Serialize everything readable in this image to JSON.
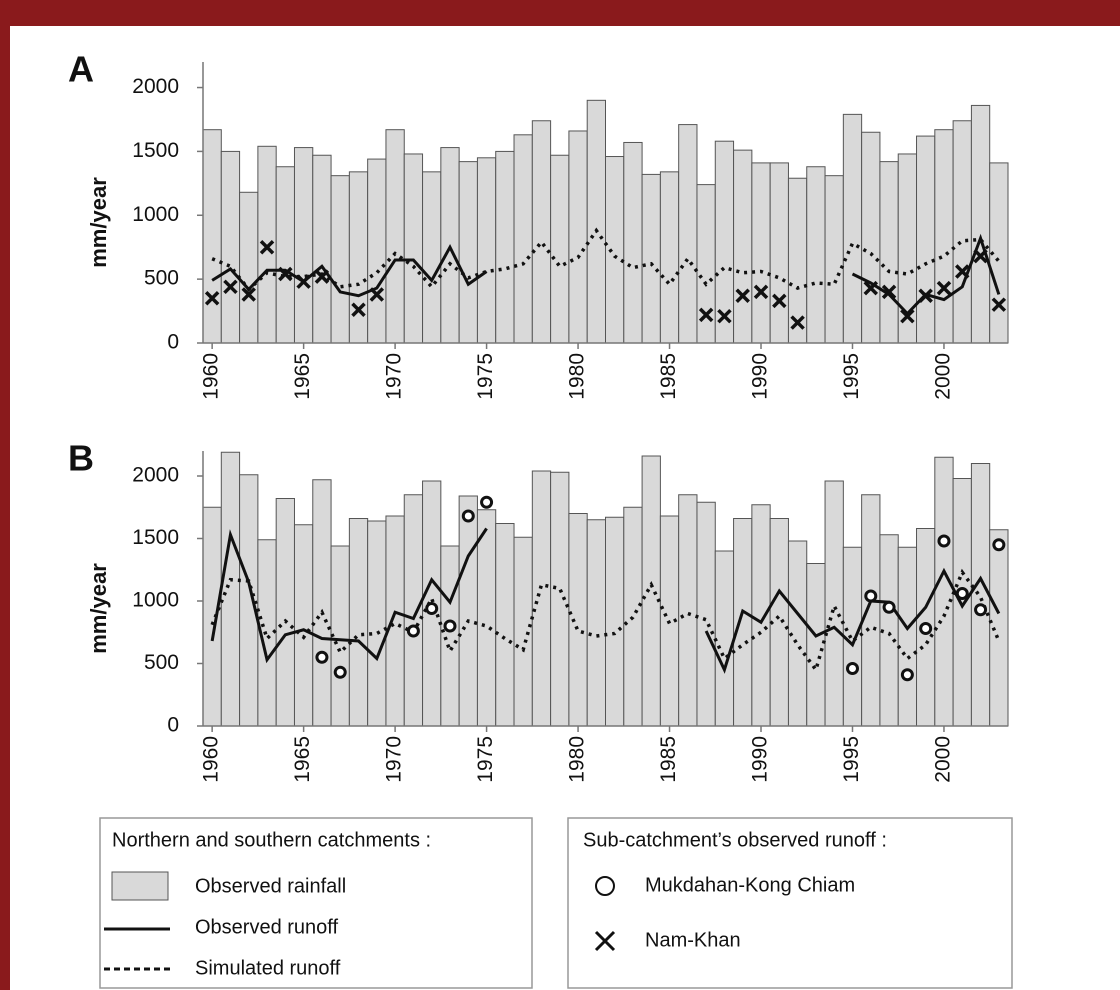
{
  "chart_data": [
    {
      "type": "combo",
      "title": "A",
      "y_label": "mm/year",
      "x": [
        1960,
        1961,
        1962,
        1963,
        1964,
        1965,
        1966,
        1967,
        1968,
        1969,
        1970,
        1971,
        1972,
        1973,
        1974,
        1975,
        1976,
        1977,
        1978,
        1979,
        1980,
        1981,
        1982,
        1983,
        1984,
        1985,
        1986,
        1987,
        1988,
        1989,
        1990,
        1991,
        1992,
        1993,
        1994,
        1995,
        1996,
        1997,
        1998,
        1999,
        2000,
        2001,
        2002,
        2003
      ],
      "xlim": [
        1959.5,
        2003.5
      ],
      "xticks": [
        1960,
        1965,
        1970,
        1975,
        1980,
        1985,
        1990,
        1995,
        2000
      ],
      "ylim": [
        0,
        2200
      ],
      "yticks": [
        0,
        500,
        1000,
        1500,
        2000
      ],
      "series": [
        {
          "name": "Observed rainfall",
          "type": "bar",
          "color": "#d9d9d9",
          "values": [
            1670,
            1500,
            1180,
            1540,
            1380,
            1530,
            1470,
            1310,
            1340,
            1440,
            1670,
            1480,
            1340,
            1530,
            1420,
            1450,
            1500,
            1630,
            1740,
            1470,
            1660,
            1900,
            1460,
            1570,
            1320,
            1340,
            1710,
            1240,
            1580,
            1510,
            1410,
            1410,
            1290,
            1380,
            1310,
            1790,
            1650,
            1420,
            1480,
            1620,
            1670,
            1740,
            1860,
            1410
          ]
        },
        {
          "name": "Observed runoff",
          "type": "line",
          "style": "solid",
          "color": "#111111",
          "values": [
            490,
            580,
            420,
            570,
            570,
            480,
            600,
            400,
            370,
            430,
            650,
            650,
            490,
            750,
            460,
            560,
            null,
            null,
            null,
            null,
            null,
            null,
            null,
            null,
            null,
            null,
            null,
            null,
            null,
            null,
            null,
            null,
            null,
            null,
            null,
            540,
            470,
            380,
            230,
            380,
            340,
            440,
            820,
            380
          ]
        },
        {
          "name": "Simulated runoff",
          "type": "line",
          "style": "dotted",
          "color": "#111111",
          "values": [
            660,
            600,
            420,
            550,
            520,
            520,
            540,
            440,
            460,
            550,
            700,
            600,
            440,
            620,
            510,
            560,
            580,
            620,
            790,
            600,
            670,
            880,
            680,
            590,
            620,
            460,
            660,
            460,
            590,
            550,
            560,
            510,
            430,
            470,
            460,
            780,
            700,
            560,
            540,
            620,
            680,
            800,
            810,
            640
          ]
        },
        {
          "name": "Nam-Khan",
          "type": "scatter",
          "marker": "x",
          "color": "#111111",
          "values": [
            350,
            440,
            380,
            750,
            540,
            480,
            520,
            null,
            260,
            380,
            null,
            null,
            null,
            null,
            null,
            null,
            null,
            null,
            null,
            null,
            null,
            null,
            null,
            null,
            null,
            null,
            null,
            220,
            210,
            370,
            400,
            330,
            160,
            null,
            null,
            null,
            430,
            400,
            210,
            370,
            430,
            560,
            680,
            300
          ]
        }
      ]
    },
    {
      "type": "combo",
      "title": "B",
      "y_label": "mm/year",
      "x": [
        1960,
        1961,
        1962,
        1963,
        1964,
        1965,
        1966,
        1967,
        1968,
        1969,
        1970,
        1971,
        1972,
        1973,
        1974,
        1975,
        1976,
        1977,
        1978,
        1979,
        1980,
        1981,
        1982,
        1983,
        1984,
        1985,
        1986,
        1987,
        1988,
        1989,
        1990,
        1991,
        1992,
        1993,
        1994,
        1995,
        1996,
        1997,
        1998,
        1999,
        2000,
        2001,
        2002,
        2003
      ],
      "xlim": [
        1959.5,
        2003.5
      ],
      "xticks": [
        1960,
        1965,
        1970,
        1975,
        1980,
        1985,
        1990,
        1995,
        2000
      ],
      "ylim": [
        0,
        2200
      ],
      "yticks": [
        0,
        500,
        1000,
        1500,
        2000
      ],
      "series": [
        {
          "name": "Observed rainfall",
          "type": "bar",
          "color": "#d9d9d9",
          "values": [
            1750,
            2190,
            2010,
            1490,
            1820,
            1610,
            1970,
            1440,
            1660,
            1640,
            1680,
            1850,
            1960,
            1440,
            1840,
            1730,
            1620,
            1510,
            2040,
            2030,
            1700,
            1650,
            1670,
            1750,
            2160,
            1680,
            1850,
            1790,
            1400,
            1660,
            1770,
            1660,
            1480,
            1300,
            1960,
            1430,
            1850,
            1530,
            1430,
            1580,
            2150,
            1980,
            2100,
            1570
          ]
        },
        {
          "name": "Observed runoff",
          "type": "line",
          "style": "solid",
          "color": "#111111",
          "values": [
            680,
            1530,
            1150,
            530,
            730,
            770,
            700,
            690,
            680,
            540,
            910,
            860,
            1170,
            990,
            1360,
            1580,
            null,
            null,
            null,
            null,
            null,
            null,
            null,
            null,
            null,
            null,
            null,
            760,
            450,
            920,
            830,
            1080,
            900,
            720,
            790,
            650,
            1000,
            990,
            780,
            950,
            1240,
            960,
            1180,
            900
          ]
        },
        {
          "name": "Simulated runoff",
          "type": "line",
          "style": "dotted",
          "color": "#111111",
          "values": [
            810,
            1170,
            1160,
            700,
            840,
            710,
            910,
            590,
            730,
            740,
            820,
            750,
            1020,
            600,
            840,
            800,
            700,
            610,
            1130,
            1100,
            760,
            720,
            740,
            870,
            1130,
            820,
            900,
            850,
            540,
            650,
            750,
            880,
            650,
            450,
            960,
            680,
            790,
            740,
            540,
            650,
            880,
            1230,
            1030,
            680
          ]
        },
        {
          "name": "Mukdahan-Kong Chiam",
          "type": "scatter",
          "marker": "circle",
          "color": "#111111",
          "values": [
            null,
            null,
            null,
            null,
            null,
            null,
            550,
            430,
            null,
            null,
            null,
            760,
            940,
            800,
            1680,
            1790,
            null,
            null,
            null,
            null,
            null,
            null,
            null,
            null,
            null,
            null,
            null,
            null,
            null,
            null,
            null,
            null,
            null,
            null,
            null,
            460,
            1040,
            950,
            410,
            780,
            1480,
            1060,
            930,
            1450
          ]
        }
      ]
    }
  ],
  "legend": {
    "groups": [
      {
        "title": "Northern and southern catchments :"
      },
      {
        "title": "Sub-catchment’s observed runoff :"
      }
    ]
  }
}
